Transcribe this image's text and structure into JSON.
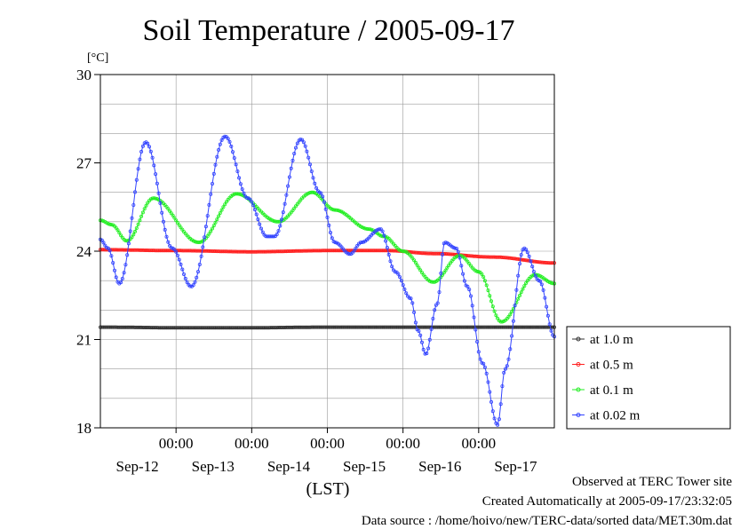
{
  "chart_data": {
    "type": "line",
    "title": "Soil Temperature / 2005-09-17",
    "ylabel": "[°C]",
    "xlabel": "(LST)",
    "ylim": [
      18,
      30
    ],
    "yticks": [
      18,
      21,
      24,
      27,
      30
    ],
    "xlim": [
      0,
      6
    ],
    "x_time_ticks": [
      {
        "x": 1.0,
        "label": "00:00"
      },
      {
        "x": 2.0,
        "label": "00:00"
      },
      {
        "x": 3.0,
        "label": "00:00"
      },
      {
        "x": 4.0,
        "label": "00:00"
      },
      {
        "x": 5.0,
        "label": "00:00"
      }
    ],
    "x_date_labels": [
      {
        "x": 0.5,
        "label": "Sep-12"
      },
      {
        "x": 1.5,
        "label": "Sep-13"
      },
      {
        "x": 2.5,
        "label": "Sep-14"
      },
      {
        "x": 3.5,
        "label": "Sep-15"
      },
      {
        "x": 4.5,
        "label": "Sep-16"
      },
      {
        "x": 5.5,
        "label": "Sep-17"
      }
    ],
    "grid": true,
    "legend_position": "right",
    "series": [
      {
        "name": "at 1.0 m",
        "color": "#333333",
        "points": [
          [
            0,
            21.42
          ],
          [
            1,
            21.4
          ],
          [
            2,
            21.4
          ],
          [
            3,
            21.42
          ],
          [
            4,
            21.42
          ],
          [
            5,
            21.42
          ],
          [
            6,
            21.42
          ]
        ]
      },
      {
        "name": "at 0.5 m",
        "color": "#ff2020",
        "points": [
          [
            0,
            24.05
          ],
          [
            1,
            24.02
          ],
          [
            2,
            23.98
          ],
          [
            3,
            24.02
          ],
          [
            3.8,
            24.02
          ],
          [
            4.4,
            23.92
          ],
          [
            5.2,
            23.8
          ],
          [
            6,
            23.6
          ]
        ]
      },
      {
        "name": "at 0.1 m",
        "color": "#22ee22",
        "points": [
          [
            0,
            25.05
          ],
          [
            0.15,
            24.9
          ],
          [
            0.35,
            24.35
          ],
          [
            0.7,
            25.8
          ],
          [
            1.3,
            24.3
          ],
          [
            1.8,
            25.95
          ],
          [
            2.35,
            25.0
          ],
          [
            2.8,
            26.0
          ],
          [
            3.1,
            25.4
          ],
          [
            3.55,
            24.75
          ],
          [
            3.75,
            24.5
          ],
          [
            4.0,
            24.0
          ],
          [
            4.4,
            22.95
          ],
          [
            4.75,
            23.85
          ],
          [
            5.0,
            23.3
          ],
          [
            5.3,
            21.6
          ],
          [
            5.75,
            23.2
          ],
          [
            6,
            22.9
          ]
        ]
      },
      {
        "name": "at 0.02 m",
        "color": "#3344ff",
        "points": [
          [
            0,
            24.4
          ],
          [
            0.1,
            24.1
          ],
          [
            0.25,
            22.9
          ],
          [
            0.6,
            27.7
          ],
          [
            0.95,
            24.1
          ],
          [
            1.2,
            22.8
          ],
          [
            1.65,
            27.9
          ],
          [
            1.95,
            25.8
          ],
          [
            2.2,
            24.5
          ],
          [
            2.3,
            24.5
          ],
          [
            2.65,
            27.8
          ],
          [
            2.9,
            26.0
          ],
          [
            3.1,
            24.3
          ],
          [
            3.3,
            23.9
          ],
          [
            3.45,
            24.3
          ],
          [
            3.7,
            24.75
          ],
          [
            3.9,
            23.3
          ],
          [
            4.1,
            22.4
          ],
          [
            4.2,
            21.3
          ],
          [
            4.3,
            20.5
          ],
          [
            4.45,
            22.2
          ],
          [
            4.55,
            24.3
          ],
          [
            4.7,
            24.1
          ],
          [
            4.85,
            22.8
          ],
          [
            5.05,
            20.2
          ],
          [
            5.25,
            18.1
          ],
          [
            5.35,
            20.0
          ],
          [
            5.6,
            24.1
          ],
          [
            5.8,
            23.0
          ],
          [
            6,
            21.1
          ]
        ]
      }
    ]
  },
  "footer": {
    "line1": "Observed at TERC Tower site",
    "line2": "Created Automatically at 2005-09-17/23:32:05",
    "line3": "Data source : /home/hoivo/new/TERC-data/sorted data/MET.30m.dat"
  }
}
